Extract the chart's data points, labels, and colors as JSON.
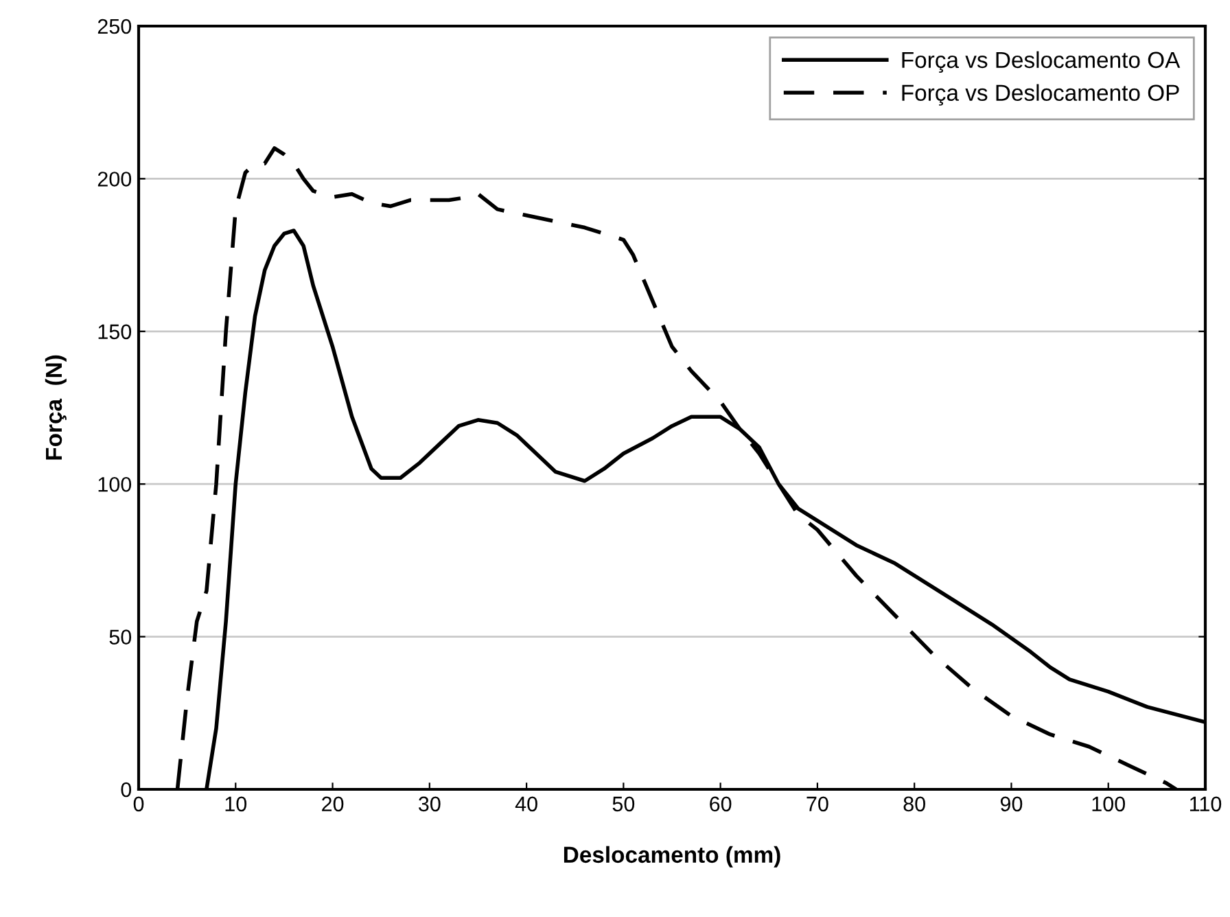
{
  "chart_data": {
    "type": "line",
    "xlabel": "Deslocamento (mm)",
    "ylabel": "Força  (N)",
    "xlim": [
      0,
      110
    ],
    "xticks": [
      0,
      10,
      20,
      30,
      40,
      50,
      60,
      70,
      80,
      90,
      100,
      110
    ],
    "ylim": [
      0,
      250
    ],
    "yticks": [
      0,
      50,
      100,
      150,
      200,
      250
    ],
    "grid": "y",
    "legend": "top right",
    "marker": "none",
    "series": [
      {
        "name": "Força vs Deslocamento OA",
        "color": "#000000",
        "line_style": "solid",
        "x": [
          7,
          8,
          9,
          10,
          11,
          12,
          13,
          14,
          15,
          16,
          17,
          18,
          20,
          22,
          24,
          25,
          27,
          29,
          31,
          33,
          35,
          37,
          39,
          41,
          43,
          46,
          48,
          50,
          53,
          55,
          57,
          60,
          62,
          64,
          66,
          68,
          70,
          74,
          78,
          80,
          84,
          88,
          92,
          94,
          96,
          100,
          104,
          110
        ],
        "values": [
          0,
          20,
          55,
          100,
          130,
          155,
          170,
          178,
          182,
          183,
          178,
          165,
          145,
          122,
          105,
          102,
          102,
          107,
          113,
          119,
          121,
          120,
          116,
          110,
          104,
          101,
          105,
          110,
          115,
          119,
          122,
          122,
          118,
          112,
          100,
          92,
          88,
          80,
          74,
          70,
          62,
          54,
          45,
          40,
          36,
          32,
          27,
          22
        ]
      },
      {
        "name": "Força vs Deslocamento OP",
        "color": "#000000",
        "line_style": "dashed",
        "x": [
          4,
          5,
          6,
          7,
          8,
          9,
          10,
          11,
          12,
          13,
          14,
          15,
          16,
          17,
          18,
          20,
          22,
          24,
          26,
          28,
          32,
          34,
          35,
          37,
          40,
          43,
          46,
          48,
          50,
          51,
          53,
          55,
          57,
          60,
          62,
          64,
          66,
          68,
          70,
          74,
          78,
          82,
          86,
          90,
          94,
          98,
          102,
          106,
          107
        ],
        "values": [
          0,
          30,
          55,
          65,
          100,
          150,
          190,
          202,
          205,
          205,
          210,
          208,
          205,
          200,
          196,
          194,
          195,
          192,
          191,
          193,
          193,
          194,
          195,
          190,
          188,
          186,
          184,
          182,
          180,
          175,
          160,
          145,
          137,
          127,
          118,
          110,
          100,
          90,
          85,
          70,
          57,
          44,
          33,
          24,
          18,
          14,
          8,
          2,
          0
        ]
      }
    ]
  }
}
